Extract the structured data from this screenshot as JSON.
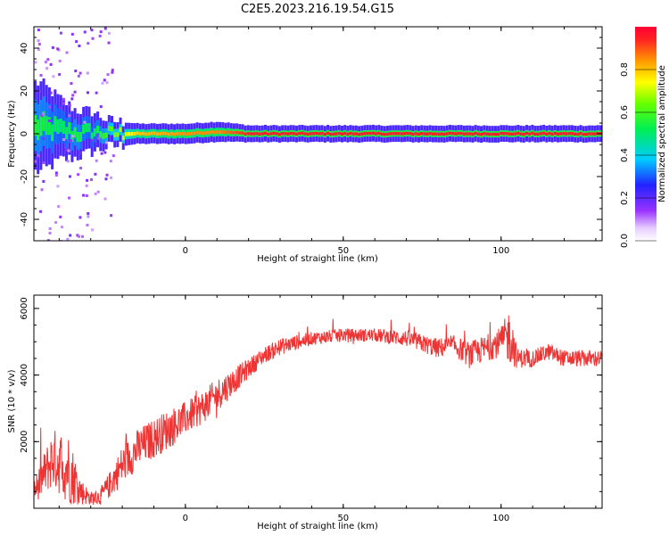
{
  "chart_data": [
    {
      "type": "heatmap",
      "title": "C2E5.2023.216.19.54.G15",
      "xlabel": "Height of straight line (km)",
      "ylabel": "Frequency (Hz)",
      "xlim": [
        -48,
        132
      ],
      "ylim": [
        -50,
        50
      ],
      "xticks": [
        0,
        50,
        100
      ],
      "yticks": [
        -40,
        -20,
        0,
        20,
        40
      ],
      "colorbar": {
        "label": "Normalized spectral amplitude",
        "range": [
          0,
          1
        ],
        "ticks": [
          "0.0",
          "0.2",
          "0.4",
          "0.6",
          "0.8"
        ],
        "colormap": "rainbow (white-violet-blue-cyan-green-yellow-orange-red)"
      },
      "description_points": [
        {
          "x": -46,
          "y_center": 3,
          "spread_hz": 12,
          "amplitude": 0.55
        },
        {
          "x": -40,
          "y_center": 2,
          "spread_hz": 8,
          "amplitude": 0.5
        },
        {
          "x": -35,
          "y_center": 0,
          "spread_hz": 6,
          "amplitude": 0.55
        },
        {
          "x": -30,
          "y_center": 1,
          "spread_hz": 5,
          "amplitude": 0.5
        },
        {
          "x": -25,
          "y_center": 0,
          "spread_hz": 3,
          "amplitude": 0.6
        },
        {
          "x": -15,
          "y_center": 0,
          "spread_hz": 2,
          "amplitude": 0.8
        },
        {
          "x": 0,
          "y_center": 0,
          "spread_hz": 2,
          "amplitude": 0.85
        },
        {
          "x": 10,
          "y_center": 1,
          "spread_hz": 2,
          "amplitude": 0.85
        },
        {
          "x": 20,
          "y_center": 0,
          "spread_hz": 1.5,
          "amplitude": 0.95
        },
        {
          "x": 130,
          "y_center": 0,
          "spread_hz": 1.5,
          "amplitude": 0.95
        }
      ]
    },
    {
      "type": "line",
      "xlabel": "Height of straight line (km)",
      "ylabel": "SNR (10 * v/v)",
      "xlim": [
        -48,
        132
      ],
      "ylim": [
        0,
        6400
      ],
      "xticks": [
        0,
        50,
        100
      ],
      "yticks": [
        2000,
        4000,
        6000
      ],
      "color": "#ee3333",
      "trend_x": [
        -48,
        -42,
        -37,
        -33,
        -30,
        -27,
        -24,
        -20,
        -15,
        -10,
        -5,
        0,
        5,
        10,
        15,
        20,
        25,
        30,
        40,
        50,
        60,
        70,
        80,
        85,
        90,
        95,
        100,
        103,
        105,
        110,
        115,
        120,
        125,
        132
      ],
      "trend_y": [
        500,
        1500,
        1200,
        500,
        300,
        350,
        700,
        1300,
        1800,
        2100,
        2400,
        2700,
        3000,
        3400,
        3800,
        4200,
        4600,
        4850,
        5100,
        5200,
        5200,
        5100,
        4800,
        4900,
        4600,
        4800,
        5000,
        5200,
        4500,
        4500,
        4700,
        4500,
        4500,
        4500
      ],
      "noise_y": [
        350,
        900,
        1100,
        400,
        200,
        250,
        400,
        600,
        600,
        600,
        600,
        500,
        500,
        500,
        400,
        300,
        250,
        250,
        200,
        200,
        200,
        250,
        300,
        300,
        400,
        400,
        450,
        900,
        300,
        250,
        250,
        250,
        250,
        250
      ]
    }
  ]
}
